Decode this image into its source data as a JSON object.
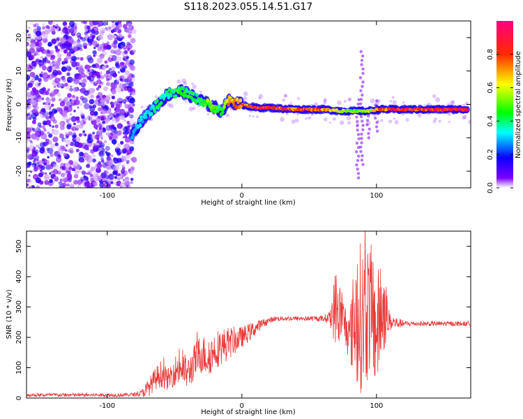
{
  "title": "S118.2023.055.14.51.G17",
  "colorbar": {
    "label": "Normalized spectral amplitude",
    "ticks": [
      "0.0",
      "0.2",
      "0.4",
      "0.6",
      "0.8"
    ],
    "tick_values": [
      0.0,
      0.2,
      0.4,
      0.6,
      0.8
    ],
    "range": [
      0,
      1
    ]
  },
  "chart_data": [
    {
      "type": "heatmap",
      "xlabel": "Height of straight line (km)",
      "ylabel": "Frequency (Hz)",
      "xlim": [
        -160,
        170
      ],
      "ylim": [
        -25,
        25
      ],
      "x_ticks": [
        "-100",
        "0",
        "100"
      ],
      "x_tick_values": [
        -100,
        0,
        100
      ],
      "y_ticks": [
        "-20",
        "-10",
        "0",
        "10",
        "20"
      ],
      "y_tick_values": [
        -20,
        -10,
        0,
        10,
        20
      ],
      "colormap": "rainbow (purple-blue-cyan-green-yellow-red-magenta)",
      "noise_region_x": [
        -160,
        -80
      ],
      "ridge": {
        "x": [
          -82,
          -75,
          -65,
          -55,
          -45,
          -35,
          -25,
          -15,
          -10,
          0,
          10,
          20,
          40,
          60,
          75,
          85,
          95,
          100,
          110,
          130,
          150,
          168
        ],
        "y": [
          -9,
          -5,
          -1,
          3,
          4,
          2,
          0,
          -2,
          1,
          0,
          -1,
          -1,
          -1.5,
          -1.5,
          -2,
          -2,
          -2,
          -1.5,
          -1.5,
          -1.5,
          -1.5,
          -1.5
        ],
        "amplitude": [
          0.3,
          0.35,
          0.4,
          0.45,
          0.5,
          0.45,
          0.55,
          0.45,
          0.75,
          0.85,
          0.95,
          0.9,
          0.9,
          0.85,
          0.6,
          0.55,
          0.6,
          0.8,
          0.9,
          0.95,
          0.95,
          0.95
        ]
      }
    },
    {
      "type": "line",
      "xlabel": "Height of straight line (km)",
      "ylabel": "SNR (10 * v/v)",
      "xlim": [
        -160,
        170
      ],
      "ylim": [
        0,
        550
      ],
      "x_ticks": [
        "-100",
        "0",
        "100"
      ],
      "x_tick_values": [
        -100,
        0,
        100
      ],
      "y_ticks": [
        "0",
        "100",
        "200",
        "300",
        "400",
        "500"
      ],
      "y_tick_values": [
        0,
        100,
        200,
        300,
        400,
        500
      ],
      "color": "#e83a3a",
      "series": [
        {
          "x": [
            -160,
            -140,
            -120,
            -100,
            -90,
            -80,
            -75,
            -70,
            -65,
            -60,
            -55,
            -50,
            -45,
            -40,
            -35,
            -30,
            -25,
            -20,
            -15,
            -10,
            -5,
            0,
            5,
            10,
            15,
            20,
            25,
            30,
            40,
            50,
            60,
            65,
            70,
            75,
            80,
            85,
            90,
            95,
            100,
            105,
            110,
            120,
            130,
            140,
            150,
            160,
            170
          ],
          "y": [
            10,
            10,
            10,
            10,
            10,
            12,
            15,
            30,
            60,
            80,
            60,
            90,
            100,
            80,
            120,
            150,
            130,
            160,
            170,
            180,
            190,
            200,
            215,
            230,
            245,
            255,
            262,
            262,
            262,
            262,
            262,
            265,
            300,
            260,
            200,
            280,
            260,
            300,
            220,
            300,
            250,
            245,
            245,
            245,
            245,
            245,
            245
          ],
          "noise_amplitude": [
            6,
            6,
            6,
            6,
            6,
            6,
            10,
            30,
            35,
            45,
            35,
            50,
            60,
            55,
            60,
            70,
            60,
            65,
            60,
            55,
            45,
            35,
            30,
            25,
            15,
            10,
            8,
            8,
            8,
            8,
            10,
            20,
            140,
            80,
            80,
            250,
            250,
            230,
            200,
            160,
            30,
            10,
            8,
            8,
            8,
            8,
            8
          ]
        }
      ]
    }
  ]
}
